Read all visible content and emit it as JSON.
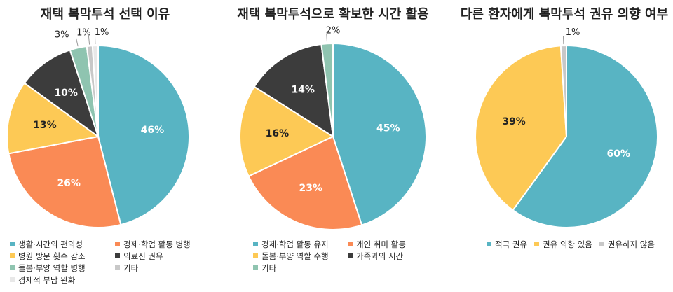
{
  "chart_data": [
    {
      "type": "pie",
      "title": "재택 복막투석 선택 이유",
      "categories": [
        "생활·시간의 편의성",
        "경제·학업 활동 병행",
        "병원 방문 횟수 감소",
        "의료진 권유",
        "돌봄·부양 역할 병행",
        "기타",
        "경제적 부담 완화"
      ],
      "values": [
        46,
        26,
        13,
        10,
        3,
        1,
        1
      ],
      "labels": [
        "46%",
        "26%",
        "13%",
        "10%",
        "3%",
        "1%",
        "1%"
      ],
      "colors": [
        "#58b4c3",
        "#fa8a55",
        "#fdc955",
        "#3c3c3c",
        "#8fc4b0",
        "#c8c8c8",
        "#e8e8e8"
      ],
      "legend_position": "bottom"
    },
    {
      "type": "pie",
      "title": "재택 복막투석으로 확보한 시간 활용",
      "categories": [
        "경제·학업 활동 유지",
        "개인 취미 활동",
        "돌봄·부양 역할 수행",
        "가족과의 시간",
        "기타"
      ],
      "values": [
        45,
        23,
        16,
        14,
        2
      ],
      "labels": [
        "45%",
        "23%",
        "16%",
        "14%",
        "2%"
      ],
      "colors": [
        "#58b4c3",
        "#fa8a55",
        "#fdc955",
        "#3c3c3c",
        "#8fc4b0"
      ],
      "legend_position": "bottom"
    },
    {
      "type": "pie",
      "title": "다른 환자에게 복막투석 권유 의향 여부",
      "categories": [
        "적극 권유",
        "권유 의향 있음",
        "권유하지 않음"
      ],
      "values": [
        60,
        39,
        1
      ],
      "labels": [
        "60%",
        "39%",
        "1%"
      ],
      "colors": [
        "#58b4c3",
        "#fdc955",
        "#c8c8c8"
      ],
      "legend_position": "bottom"
    }
  ]
}
